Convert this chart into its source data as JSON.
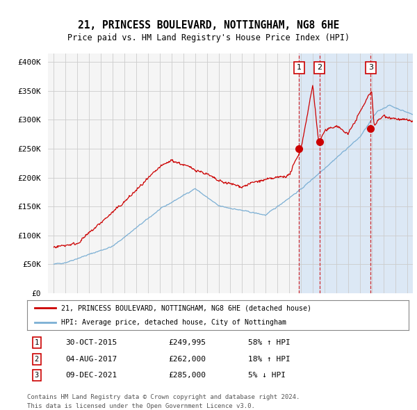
{
  "title1": "21, PRINCESS BOULEVARD, NOTTINGHAM, NG8 6HE",
  "title2": "Price paid vs. HM Land Registry's House Price Index (HPI)",
  "ylabel_ticks": [
    "£0",
    "£50K",
    "£100K",
    "£150K",
    "£200K",
    "£250K",
    "£300K",
    "£350K",
    "£400K"
  ],
  "ylabel_values": [
    0,
    50000,
    100000,
    150000,
    200000,
    250000,
    300000,
    350000,
    400000
  ],
  "ylim": [
    0,
    415000
  ],
  "hpi_color": "#7bafd4",
  "price_color": "#cc0000",
  "bg_plot": "#f5f5f5",
  "bg_shade": "#dce8f5",
  "bg_figure": "#ffffff",
  "grid_color": "#cccccc",
  "legend_label_red": "21, PRINCESS BOULEVARD, NOTTINGHAM, NG8 6HE (detached house)",
  "legend_label_blue": "HPI: Average price, detached house, City of Nottingham",
  "sales": [
    {
      "num": 1,
      "date": "30-OCT-2015",
      "price": 249995,
      "x": 2015.83,
      "pct": "58%",
      "dir": "↑"
    },
    {
      "num": 2,
      "date": "04-AUG-2017",
      "price": 262000,
      "x": 2017.58,
      "pct": "18%",
      "dir": "↑"
    },
    {
      "num": 3,
      "date": "09-DEC-2021",
      "price": 285000,
      "x": 2021.92,
      "pct": "5%",
      "dir": "↓"
    }
  ],
  "footnote1": "Contains HM Land Registry data © Crown copyright and database right 2024.",
  "footnote2": "This data is licensed under the Open Government Licence v3.0.",
  "xmin": 1994.5,
  "xmax": 2025.5
}
